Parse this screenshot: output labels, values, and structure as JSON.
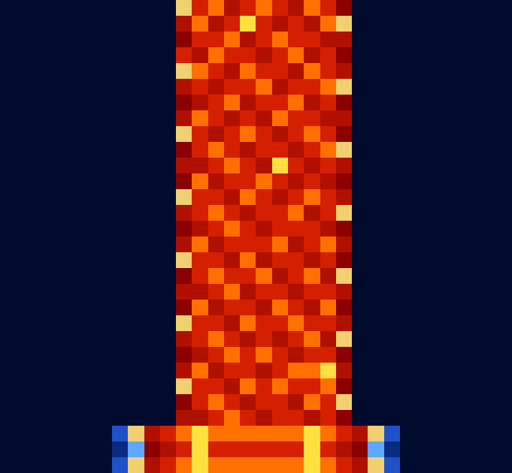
{
  "chart_data": {
    "type": "heatmap",
    "tick_labels": false,
    "zlim": [
      0,
      9
    ],
    "cells": [
      [
        0,
        0,
        0,
        0,
        0,
        0,
        0,
        0,
        0,
        0,
        0,
        4,
        7,
        8,
        6,
        7,
        8,
        7,
        6,
        8,
        7,
        5,
        0,
        0,
        0,
        0,
        0,
        0,
        0,
        0,
        0,
        0
      ],
      [
        0,
        0,
        0,
        0,
        0,
        0,
        0,
        0,
        0,
        0,
        0,
        6,
        8,
        6,
        7,
        9,
        7,
        6,
        7,
        6,
        8,
        4,
        0,
        0,
        0,
        0,
        0,
        0,
        0,
        0,
        0,
        0
      ],
      [
        0,
        0,
        0,
        0,
        0,
        0,
        0,
        0,
        0,
        0,
        0,
        5,
        7,
        7,
        8,
        6,
        7,
        8,
        7,
        7,
        6,
        6,
        0,
        0,
        0,
        0,
        0,
        0,
        0,
        0,
        0,
        0
      ],
      [
        0,
        0,
        0,
        0,
        0,
        0,
        0,
        0,
        0,
        0,
        0,
        7,
        6,
        8,
        7,
        7,
        6,
        7,
        8,
        6,
        7,
        5,
        0,
        0,
        0,
        0,
        0,
        0,
        0,
        0,
        0,
        0
      ],
      [
        0,
        0,
        0,
        0,
        0,
        0,
        0,
        0,
        0,
        0,
        0,
        4,
        8,
        7,
        6,
        8,
        7,
        7,
        6,
        8,
        7,
        6,
        0,
        0,
        0,
        0,
        0,
        0,
        0,
        0,
        0,
        0
      ],
      [
        0,
        0,
        0,
        0,
        0,
        0,
        0,
        0,
        0,
        0,
        0,
        6,
        7,
        6,
        7,
        7,
        8,
        6,
        7,
        7,
        8,
        4,
        0,
        0,
        0,
        0,
        0,
        0,
        0,
        0,
        0,
        0
      ],
      [
        0,
        0,
        0,
        0,
        0,
        0,
        0,
        0,
        0,
        0,
        0,
        5,
        6,
        7,
        8,
        6,
        7,
        7,
        8,
        6,
        7,
        5,
        0,
        0,
        0,
        0,
        0,
        0,
        0,
        0,
        0,
        0
      ],
      [
        0,
        0,
        0,
        0,
        0,
        0,
        0,
        0,
        0,
        0,
        0,
        6,
        8,
        7,
        6,
        7,
        6,
        8,
        7,
        7,
        6,
        6,
        0,
        0,
        0,
        0,
        0,
        0,
        0,
        0,
        0,
        0
      ],
      [
        0,
        0,
        0,
        0,
        0,
        0,
        0,
        0,
        0,
        0,
        0,
        4,
        7,
        6,
        7,
        8,
        7,
        6,
        7,
        8,
        7,
        5,
        0,
        0,
        0,
        0,
        0,
        0,
        0,
        0,
        0,
        0
      ],
      [
        0,
        0,
        0,
        0,
        0,
        0,
        0,
        0,
        0,
        0,
        0,
        5,
        7,
        8,
        7,
        6,
        7,
        7,
        6,
        7,
        8,
        4,
        0,
        0,
        0,
        0,
        0,
        0,
        0,
        0,
        0,
        0
      ],
      [
        0,
        0,
        0,
        0,
        0,
        0,
        0,
        0,
        0,
        0,
        0,
        6,
        6,
        7,
        8,
        7,
        6,
        9,
        7,
        6,
        7,
        6,
        0,
        0,
        0,
        0,
        0,
        0,
        0,
        0,
        0,
        0
      ],
      [
        0,
        0,
        0,
        0,
        0,
        0,
        0,
        0,
        0,
        0,
        0,
        5,
        8,
        6,
        7,
        7,
        8,
        7,
        6,
        7,
        6,
        5,
        0,
        0,
        0,
        0,
        0,
        0,
        0,
        0,
        0,
        0
      ],
      [
        0,
        0,
        0,
        0,
        0,
        0,
        0,
        0,
        0,
        0,
        0,
        4,
        7,
        7,
        6,
        8,
        7,
        6,
        7,
        8,
        7,
        6,
        0,
        0,
        0,
        0,
        0,
        0,
        0,
        0,
        0,
        0
      ],
      [
        0,
        0,
        0,
        0,
        0,
        0,
        0,
        0,
        0,
        0,
        0,
        6,
        7,
        8,
        7,
        6,
        7,
        7,
        8,
        6,
        7,
        4,
        0,
        0,
        0,
        0,
        0,
        0,
        0,
        0,
        0,
        0
      ],
      [
        0,
        0,
        0,
        0,
        0,
        0,
        0,
        0,
        0,
        0,
        0,
        5,
        6,
        7,
        8,
        7,
        6,
        7,
        7,
        7,
        6,
        5,
        0,
        0,
        0,
        0,
        0,
        0,
        0,
        0,
        0,
        0
      ],
      [
        0,
        0,
        0,
        0,
        0,
        0,
        0,
        0,
        0,
        0,
        0,
        6,
        8,
        6,
        7,
        7,
        7,
        8,
        6,
        7,
        8,
        6,
        0,
        0,
        0,
        0,
        0,
        0,
        0,
        0,
        0,
        0
      ],
      [
        0,
        0,
        0,
        0,
        0,
        0,
        0,
        0,
        0,
        0,
        0,
        4,
        7,
        7,
        6,
        8,
        6,
        7,
        7,
        6,
        7,
        5,
        0,
        0,
        0,
        0,
        0,
        0,
        0,
        0,
        0,
        0
      ],
      [
        0,
        0,
        0,
        0,
        0,
        0,
        0,
        0,
        0,
        0,
        0,
        5,
        7,
        8,
        7,
        7,
        8,
        6,
        7,
        8,
        6,
        4,
        0,
        0,
        0,
        0,
        0,
        0,
        0,
        0,
        0,
        0
      ],
      [
        0,
        0,
        0,
        0,
        0,
        0,
        0,
        0,
        0,
        0,
        0,
        6,
        6,
        7,
        8,
        6,
        7,
        7,
        6,
        7,
        7,
        6,
        0,
        0,
        0,
        0,
        0,
        0,
        0,
        0,
        0,
        0
      ],
      [
        0,
        0,
        0,
        0,
        0,
        0,
        0,
        0,
        0,
        0,
        0,
        5,
        8,
        6,
        7,
        7,
        6,
        8,
        7,
        6,
        8,
        5,
        0,
        0,
        0,
        0,
        0,
        0,
        0,
        0,
        0,
        0
      ],
      [
        0,
        0,
        0,
        0,
        0,
        0,
        0,
        0,
        0,
        0,
        0,
        4,
        7,
        7,
        6,
        8,
        7,
        7,
        8,
        7,
        7,
        6,
        0,
        0,
        0,
        0,
        0,
        0,
        0,
        0,
        0,
        0
      ],
      [
        0,
        0,
        0,
        0,
        0,
        0,
        0,
        0,
        0,
        0,
        0,
        6,
        7,
        8,
        7,
        6,
        7,
        6,
        7,
        8,
        6,
        4,
        0,
        0,
        0,
        0,
        0,
        0,
        0,
        0,
        0,
        0
      ],
      [
        0,
        0,
        0,
        0,
        0,
        0,
        0,
        0,
        0,
        0,
        0,
        5,
        6,
        7,
        8,
        7,
        8,
        7,
        6,
        7,
        7,
        5,
        0,
        0,
        0,
        0,
        0,
        0,
        0,
        0,
        0,
        0
      ],
      [
        0,
        0,
        0,
        0,
        0,
        0,
        0,
        0,
        0,
        0,
        0,
        6,
        8,
        6,
        7,
        7,
        6,
        7,
        8,
        8,
        9,
        6,
        0,
        0,
        0,
        0,
        0,
        0,
        0,
        0,
        0,
        0
      ],
      [
        0,
        0,
        0,
        0,
        0,
        0,
        0,
        0,
        0,
        0,
        0,
        4,
        7,
        7,
        6,
        8,
        7,
        8,
        7,
        7,
        8,
        5,
        0,
        0,
        0,
        0,
        0,
        0,
        0,
        0,
        0,
        0
      ],
      [
        0,
        0,
        0,
        0,
        0,
        0,
        0,
        0,
        0,
        0,
        0,
        5,
        7,
        8,
        7,
        6,
        7,
        7,
        6,
        8,
        7,
        4,
        0,
        0,
        0,
        0,
        0,
        0,
        0,
        0,
        0,
        0
      ],
      [
        0,
        0,
        0,
        0,
        0,
        0,
        0,
        0,
        0,
        0,
        0,
        6,
        6,
        7,
        8,
        7,
        6,
        7,
        7,
        6,
        7,
        5,
        0,
        0,
        0,
        0,
        0,
        0,
        0,
        0,
        0,
        0
      ],
      [
        0,
        0,
        0,
        0,
        0,
        0,
        0,
        2,
        4,
        6,
        7,
        8,
        9,
        8,
        8,
        8,
        8,
        8,
        8,
        9,
        8,
        7,
        6,
        4,
        2,
        0,
        0,
        0,
        0,
        0,
        0,
        0
      ],
      [
        0,
        0,
        0,
        0,
        0,
        0,
        0,
        1,
        3,
        5,
        6,
        7,
        9,
        7,
        7,
        7,
        7,
        7,
        7,
        9,
        7,
        6,
        5,
        3,
        1,
        0,
        0,
        0,
        0,
        0,
        0,
        0
      ],
      [
        0,
        0,
        0,
        0,
        0,
        0,
        0,
        2,
        4,
        6,
        7,
        8,
        9,
        8,
        8,
        8,
        8,
        8,
        8,
        9,
        8,
        7,
        6,
        4,
        2,
        0,
        0,
        0,
        0,
        0,
        0,
        0
      ]
    ]
  }
}
